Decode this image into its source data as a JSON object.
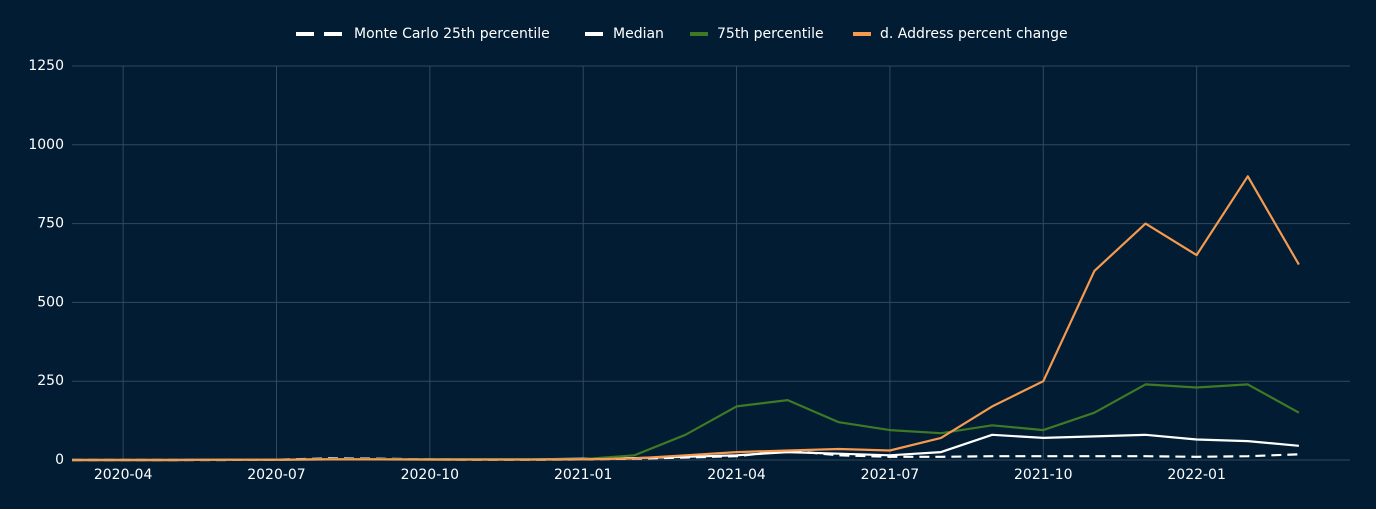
{
  "chart_data": {
    "type": "line",
    "x": [
      "2020-03",
      "2020-04",
      "2020-05",
      "2020-06",
      "2020-07",
      "2020-08",
      "2020-09",
      "2020-10",
      "2020-11",
      "2020-12",
      "2021-01",
      "2021-02",
      "2021-03",
      "2021-04",
      "2021-05",
      "2021-06",
      "2021-07",
      "2021-08",
      "2021-09",
      "2021-10",
      "2021-11",
      "2021-12",
      "2022-01",
      "2022-02",
      "2022-03"
    ],
    "series": [
      {
        "name": "Monte Carlo 25th percentile",
        "color": "#ffffff",
        "dash": true,
        "values": [
          0,
          0,
          0,
          0,
          1,
          5,
          4,
          2,
          1,
          1,
          2,
          4,
          8,
          12,
          30,
          15,
          10,
          10,
          12,
          12,
          12,
          12,
          10,
          12,
          18
        ]
      },
      {
        "name": "Median",
        "color": "#ffffff",
        "dash": false,
        "values": [
          0,
          0,
          0,
          1,
          1,
          2,
          2,
          2,
          2,
          2,
          4,
          6,
          10,
          15,
          25,
          20,
          15,
          25,
          80,
          70,
          75,
          80,
          65,
          60,
          45
        ]
      },
      {
        "name": "75th percentile",
        "color": "#3e7a25",
        "dash": false,
        "values": [
          0,
          0,
          0,
          1,
          1,
          3,
          3,
          2,
          2,
          2,
          3,
          15,
          80,
          170,
          190,
          120,
          95,
          85,
          110,
          95,
          150,
          240,
          230,
          240,
          150
        ]
      },
      {
        "name": "d. Address percent change",
        "color": "#f59a4f",
        "dash": false,
        "values": [
          0,
          0,
          0,
          1,
          1,
          2,
          2,
          1,
          1,
          1,
          2,
          5,
          15,
          25,
          30,
          35,
          30,
          70,
          170,
          250,
          600,
          750,
          650,
          900,
          620
        ]
      }
    ],
    "xlim": [
      "2020-03",
      "2022-04"
    ],
    "xticks": [
      "2020-04",
      "2020-07",
      "2020-10",
      "2021-01",
      "2021-04",
      "2021-07",
      "2021-10",
      "2022-01"
    ],
    "ylim": [
      0,
      1250
    ],
    "yticks": [
      0,
      250,
      500,
      750,
      1000,
      1250
    ],
    "grid": true,
    "legend": "top"
  }
}
